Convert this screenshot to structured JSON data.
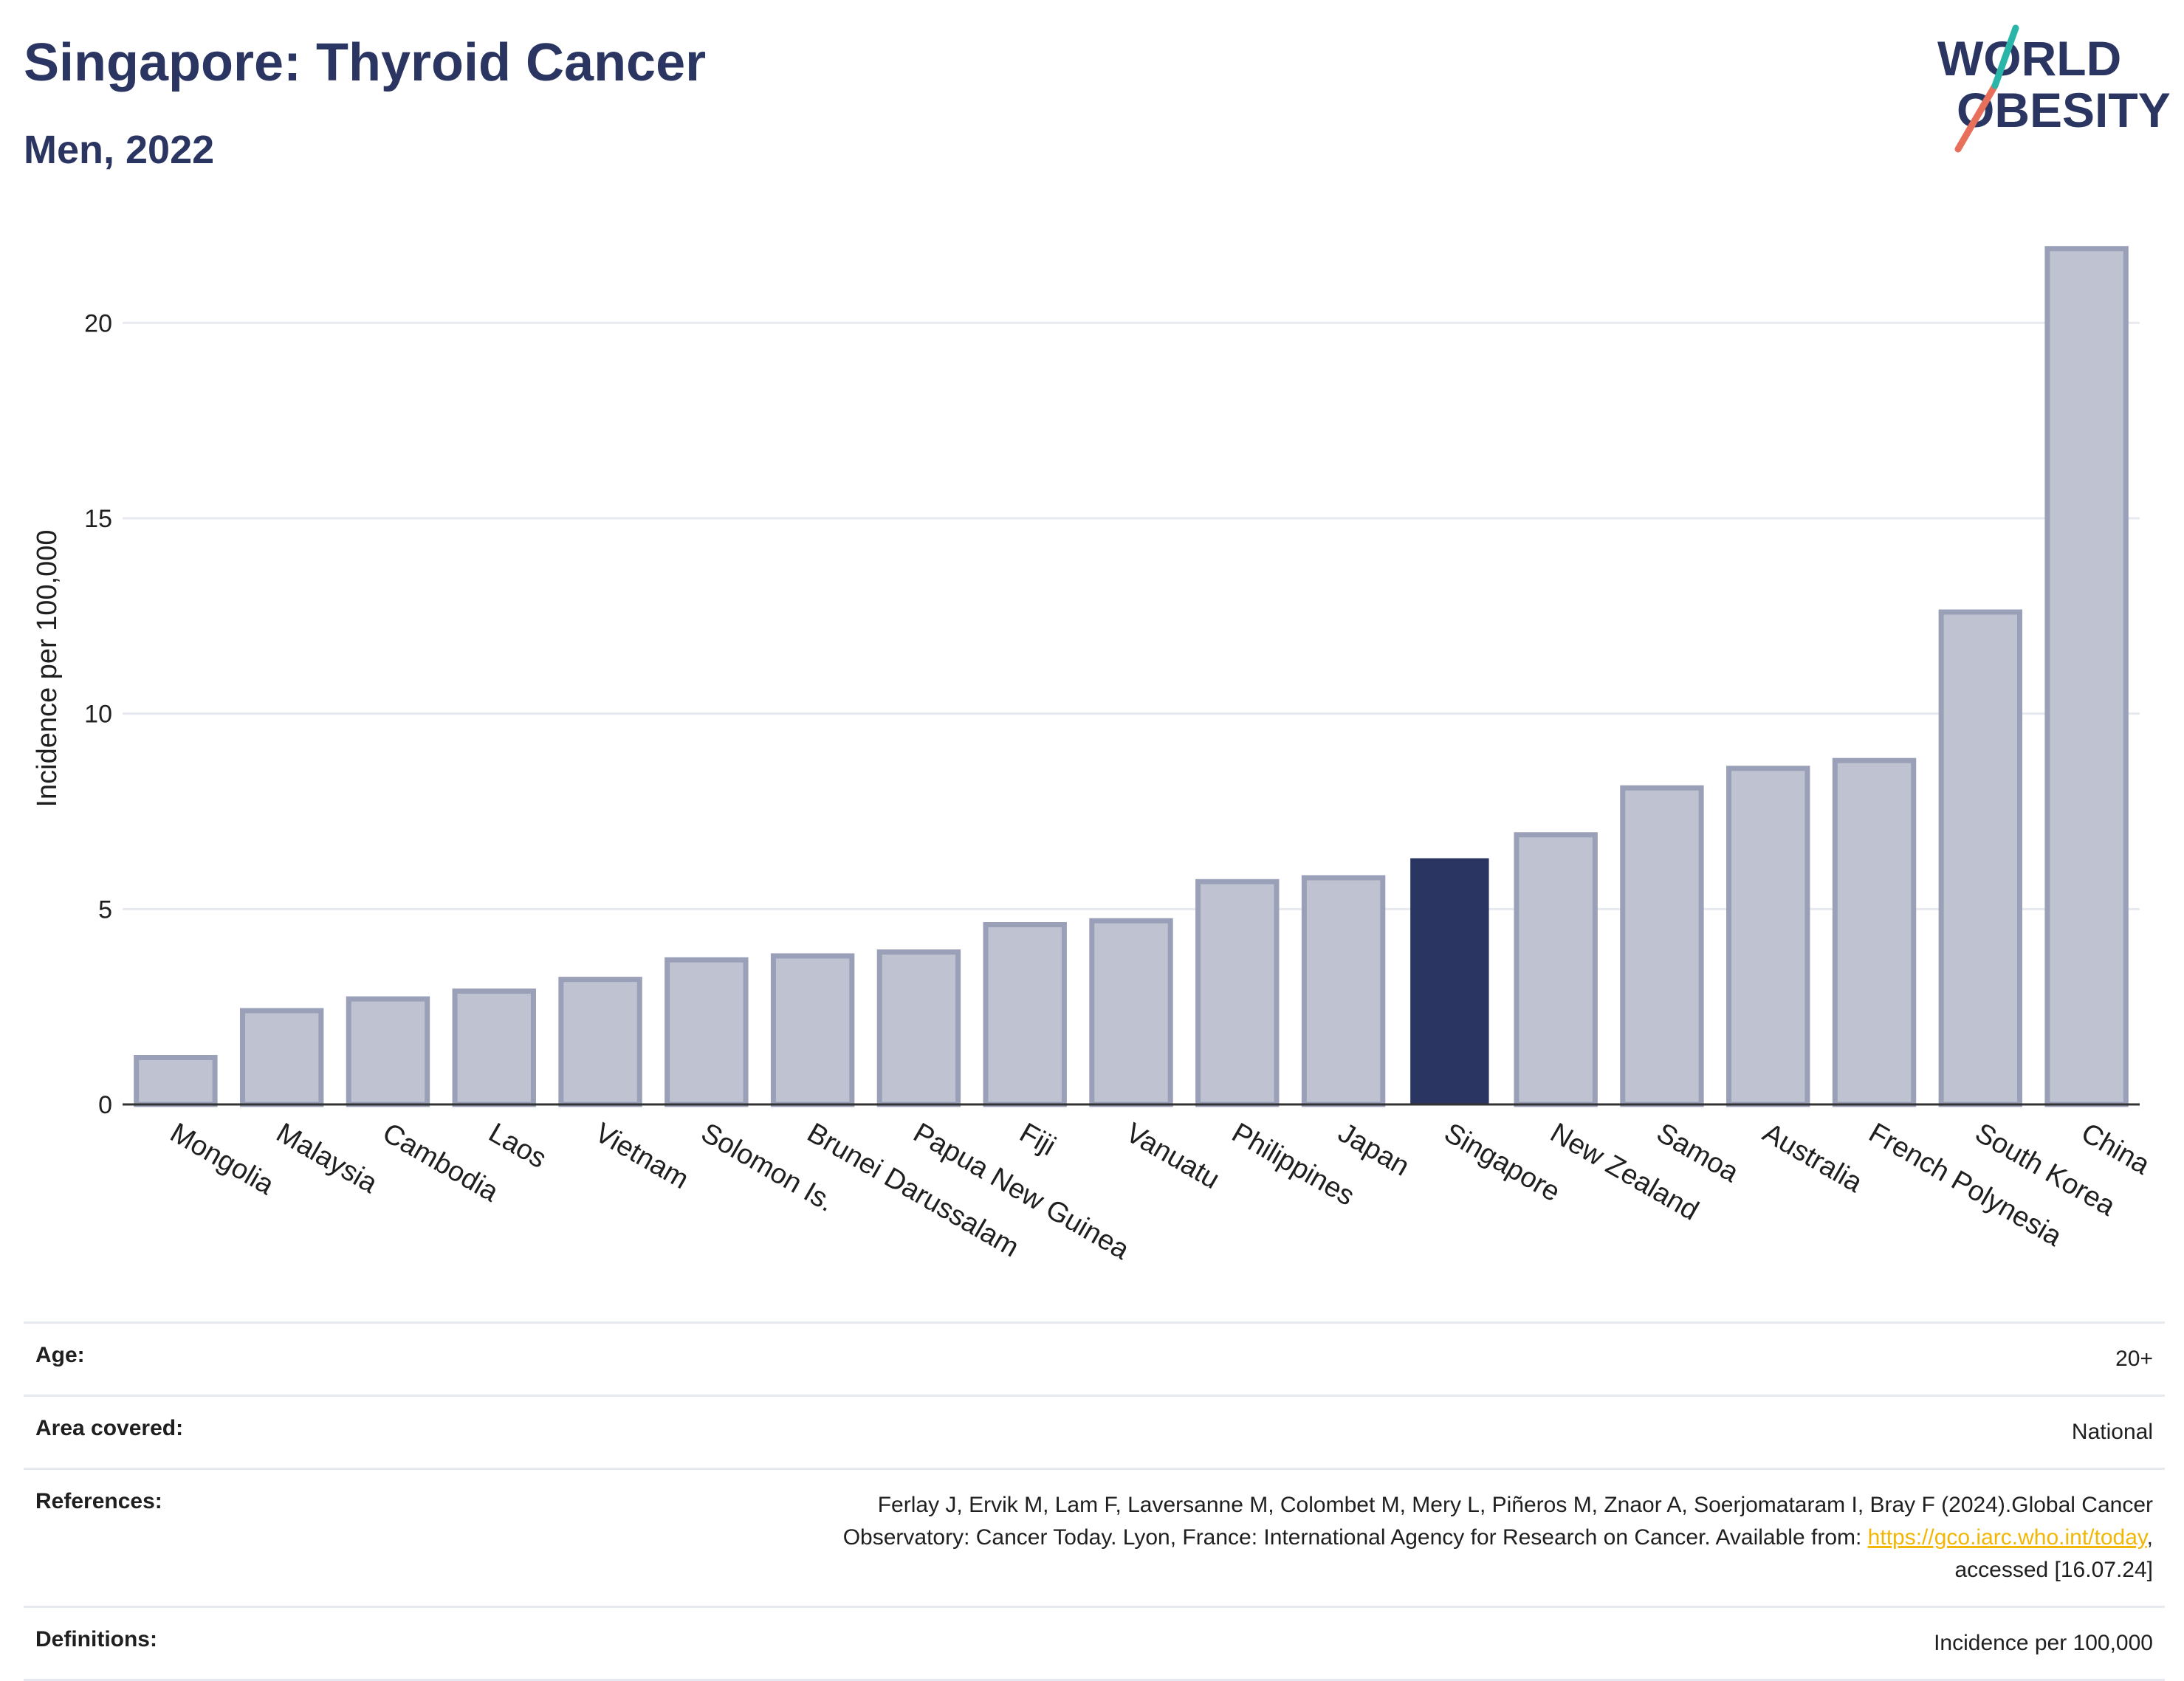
{
  "header": {
    "title": "Singapore: Thyroid Cancer",
    "subtitle": "Men, 2022"
  },
  "logo": {
    "line1": "WORLD",
    "line2": "OBESITY"
  },
  "colors": {
    "title": "#2b3561",
    "bar": "#bfc3d1",
    "bar_stroke": "#9aa0b8",
    "highlight": "#2b3561",
    "grid": "#e7e9f0",
    "link": "#f2b705"
  },
  "chart_data": {
    "type": "bar",
    "ylabel": "Incidence per 100,000",
    "ylim": [
      0,
      22.5
    ],
    "yticks": [
      0,
      5,
      10,
      15,
      20
    ],
    "grid": true,
    "highlight": "Singapore",
    "categories": [
      "Mongolia",
      "Malaysia",
      "Cambodia",
      "Laos",
      "Vietnam",
      "Solomon Is.",
      "Brunei Darussalam",
      "Papua New Guinea",
      "Fiji",
      "Vanuatu",
      "Philippines",
      "Japan",
      "Singapore",
      "New Zealand",
      "Samoa",
      "Australia",
      "French Polynesia",
      "South Korea",
      "China"
    ],
    "values": [
      1.2,
      2.4,
      2.7,
      2.9,
      3.2,
      3.7,
      3.8,
      3.9,
      4.6,
      4.7,
      5.7,
      5.8,
      6.3,
      6.9,
      8.1,
      8.6,
      8.8,
      12.6,
      21.9
    ]
  },
  "info": {
    "age_label": "Age:",
    "age_value": "20+",
    "area_label": "Area covered:",
    "area_value": "National",
    "references_label": "References:",
    "references_line1": "Ferlay J, Ervik M, Lam F, Laversanne M, Colombet M, Mery L, Piñeros M, Znaor A, Soerjomataram I, Bray F (2024).Global Cancer",
    "references_line2": "Observatory: Cancer Today. Lyon, France: International Agency for Research on Cancer. Available from: ",
    "references_link": "https://gco.iarc.who.int/today",
    "references_line2_end": ",",
    "references_line3": "accessed [16.07.24]",
    "definitions_label": "Definitions:",
    "definitions_value": "Incidence per 100,000"
  }
}
